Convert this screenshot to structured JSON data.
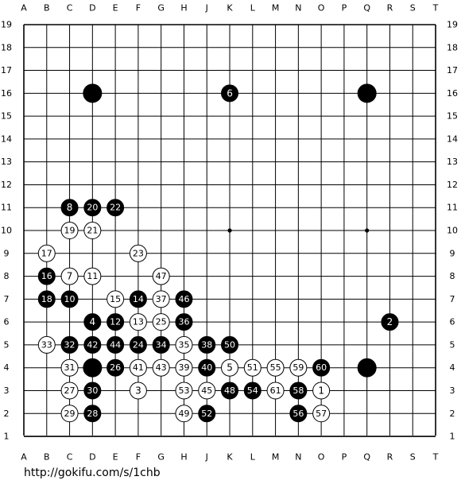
{
  "columns": [
    "A",
    "B",
    "C",
    "D",
    "E",
    "F",
    "G",
    "H",
    "J",
    "K",
    "L",
    "M",
    "N",
    "O",
    "P",
    "Q",
    "R",
    "S",
    "T"
  ],
  "rows": [
    19,
    18,
    17,
    16,
    15,
    14,
    13,
    12,
    11,
    10,
    9,
    8,
    7,
    6,
    5,
    4,
    3,
    2,
    1
  ],
  "stones": [
    {
      "point": "D16",
      "color": "black"
    },
    {
      "point": "K16",
      "color": "black",
      "label": 6
    },
    {
      "point": "Q16",
      "color": "black"
    },
    {
      "point": "C11",
      "color": "black",
      "label": 8
    },
    {
      "point": "D11",
      "color": "black",
      "label": 20
    },
    {
      "point": "E11",
      "color": "black",
      "label": 22
    },
    {
      "point": "C10",
      "color": "white",
      "label": 19
    },
    {
      "point": "D10",
      "color": "white",
      "label": 21
    },
    {
      "point": "B9",
      "color": "white",
      "label": 17
    },
    {
      "point": "F9",
      "color": "white",
      "label": 23
    },
    {
      "point": "B8",
      "color": "black",
      "label": 16
    },
    {
      "point": "C8",
      "color": "white",
      "label": 7
    },
    {
      "point": "D8",
      "color": "white",
      "label": 11
    },
    {
      "point": "G8",
      "color": "white",
      "label": 47
    },
    {
      "point": "B7",
      "color": "black",
      "label": 18
    },
    {
      "point": "C7",
      "color": "black",
      "label": 10
    },
    {
      "point": "E7",
      "color": "white",
      "label": 15
    },
    {
      "point": "F7",
      "color": "black",
      "label": 14
    },
    {
      "point": "G7",
      "color": "white",
      "label": 37
    },
    {
      "point": "H7",
      "color": "black",
      "label": 46
    },
    {
      "point": "D6",
      "color": "black",
      "label": 4
    },
    {
      "point": "E6",
      "color": "black",
      "label": 12
    },
    {
      "point": "F6",
      "color": "white",
      "label": 13
    },
    {
      "point": "G6",
      "color": "white",
      "label": 25
    },
    {
      "point": "H6",
      "color": "black",
      "label": 36
    },
    {
      "point": "R6",
      "color": "black",
      "label": 2
    },
    {
      "point": "B5",
      "color": "white",
      "label": 33
    },
    {
      "point": "C5",
      "color": "black",
      "label": 32
    },
    {
      "point": "D5",
      "color": "black",
      "label": 42
    },
    {
      "point": "E5",
      "color": "black",
      "label": 44
    },
    {
      "point": "F5",
      "color": "black",
      "label": 24
    },
    {
      "point": "G5",
      "color": "black",
      "label": 34
    },
    {
      "point": "H5",
      "color": "white",
      "label": 35
    },
    {
      "point": "J5",
      "color": "black",
      "label": 38
    },
    {
      "point": "K5",
      "color": "black",
      "label": 50
    },
    {
      "point": "C4",
      "color": "white",
      "label": 31
    },
    {
      "point": "D4",
      "color": "black"
    },
    {
      "point": "E4",
      "color": "black",
      "label": 26
    },
    {
      "point": "F4",
      "color": "white",
      "label": 41
    },
    {
      "point": "G4",
      "color": "white",
      "label": 43
    },
    {
      "point": "H4",
      "color": "white",
      "label": 39
    },
    {
      "point": "J4",
      "color": "black",
      "label": 40
    },
    {
      "point": "K4",
      "color": "white",
      "label": 5
    },
    {
      "point": "L4",
      "color": "white",
      "label": 51
    },
    {
      "point": "M4",
      "color": "white",
      "label": 55
    },
    {
      "point": "N4",
      "color": "white",
      "label": 59
    },
    {
      "point": "O4",
      "color": "black",
      "label": 60
    },
    {
      "point": "Q4",
      "color": "black"
    },
    {
      "point": "C3",
      "color": "white",
      "label": 27
    },
    {
      "point": "D3",
      "color": "black",
      "label": 30
    },
    {
      "point": "F3",
      "color": "white",
      "label": 3
    },
    {
      "point": "H3",
      "color": "white",
      "label": 53
    },
    {
      "point": "J3",
      "color": "white",
      "label": 45
    },
    {
      "point": "K3",
      "color": "black",
      "label": 48
    },
    {
      "point": "L3",
      "color": "black",
      "label": 54
    },
    {
      "point": "M3",
      "color": "white",
      "label": 61
    },
    {
      "point": "N3",
      "color": "black",
      "label": 58
    },
    {
      "point": "O3",
      "color": "white",
      "label": 1
    },
    {
      "point": "C2",
      "color": "white",
      "label": 29
    },
    {
      "point": "D2",
      "color": "black",
      "label": 28
    },
    {
      "point": "H2",
      "color": "white",
      "label": 49
    },
    {
      "point": "J2",
      "color": "black",
      "label": 52
    },
    {
      "point": "N2",
      "color": "black",
      "label": 56
    },
    {
      "point": "O2",
      "color": "white",
      "label": 57
    }
  ],
  "url": "http://gokifu.com/s/1chb"
}
